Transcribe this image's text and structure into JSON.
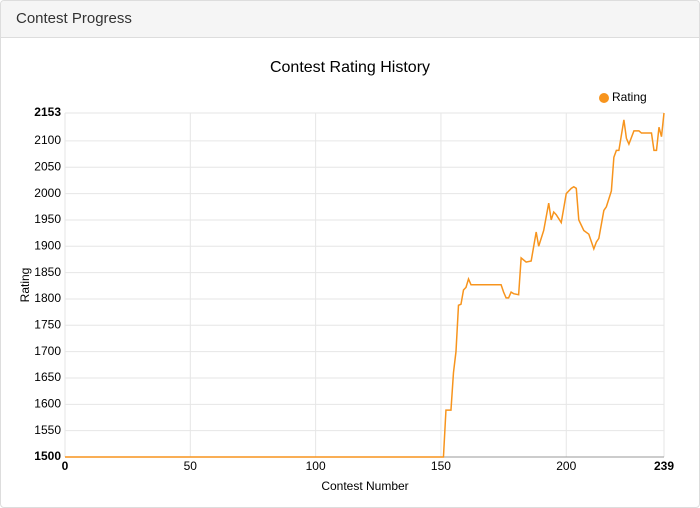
{
  "header": {
    "title": "Contest Progress"
  },
  "chart_data": {
    "type": "line",
    "title": "Contest Rating History",
    "x_label": "Contest Number",
    "y_label": "Rating",
    "x": [
      0,
      151,
      152,
      154,
      155,
      156,
      157,
      158,
      159,
      160,
      161,
      162,
      174,
      175,
      176,
      177,
      178,
      179,
      181,
      182,
      184,
      186,
      188,
      189,
      191,
      193,
      194,
      195,
      196,
      198,
      200,
      202,
      203,
      204,
      205,
      207,
      209,
      211,
      212,
      213,
      215,
      216,
      218,
      219,
      220,
      221,
      223,
      224,
      225,
      227,
      229,
      230,
      234,
      235,
      236,
      237,
      238,
      239
    ],
    "series": [
      {
        "name": "Rating",
        "color": "#f7941d",
        "values": [
          1500,
          1500,
          1589,
          1589,
          1660,
          1700,
          1788,
          1790,
          1817,
          1822,
          1838,
          1827,
          1827,
          1813,
          1802,
          1802,
          1813,
          1810,
          1808,
          1878,
          1870,
          1872,
          1927,
          1900,
          1930,
          1982,
          1950,
          1965,
          1960,
          1945,
          2000,
          2010,
          2013,
          2010,
          1950,
          1930,
          1923,
          1895,
          1908,
          1915,
          1968,
          1975,
          2005,
          2069,
          2082,
          2082,
          2140,
          2105,
          2094,
          2119,
          2119,
          2115,
          2115,
          2082,
          2082,
          2126,
          2108,
          2153
        ]
      }
    ],
    "xlim": [
      0,
      239
    ],
    "xticks": [
      0,
      50,
      100,
      150,
      200,
      239
    ],
    "ylim": [
      1500,
      2153
    ],
    "yticks": [
      1500,
      1550,
      1600,
      1650,
      1700,
      1750,
      1800,
      1850,
      1900,
      1950,
      2000,
      2050,
      2100,
      2153
    ],
    "grid": true,
    "legend": "top-right"
  }
}
